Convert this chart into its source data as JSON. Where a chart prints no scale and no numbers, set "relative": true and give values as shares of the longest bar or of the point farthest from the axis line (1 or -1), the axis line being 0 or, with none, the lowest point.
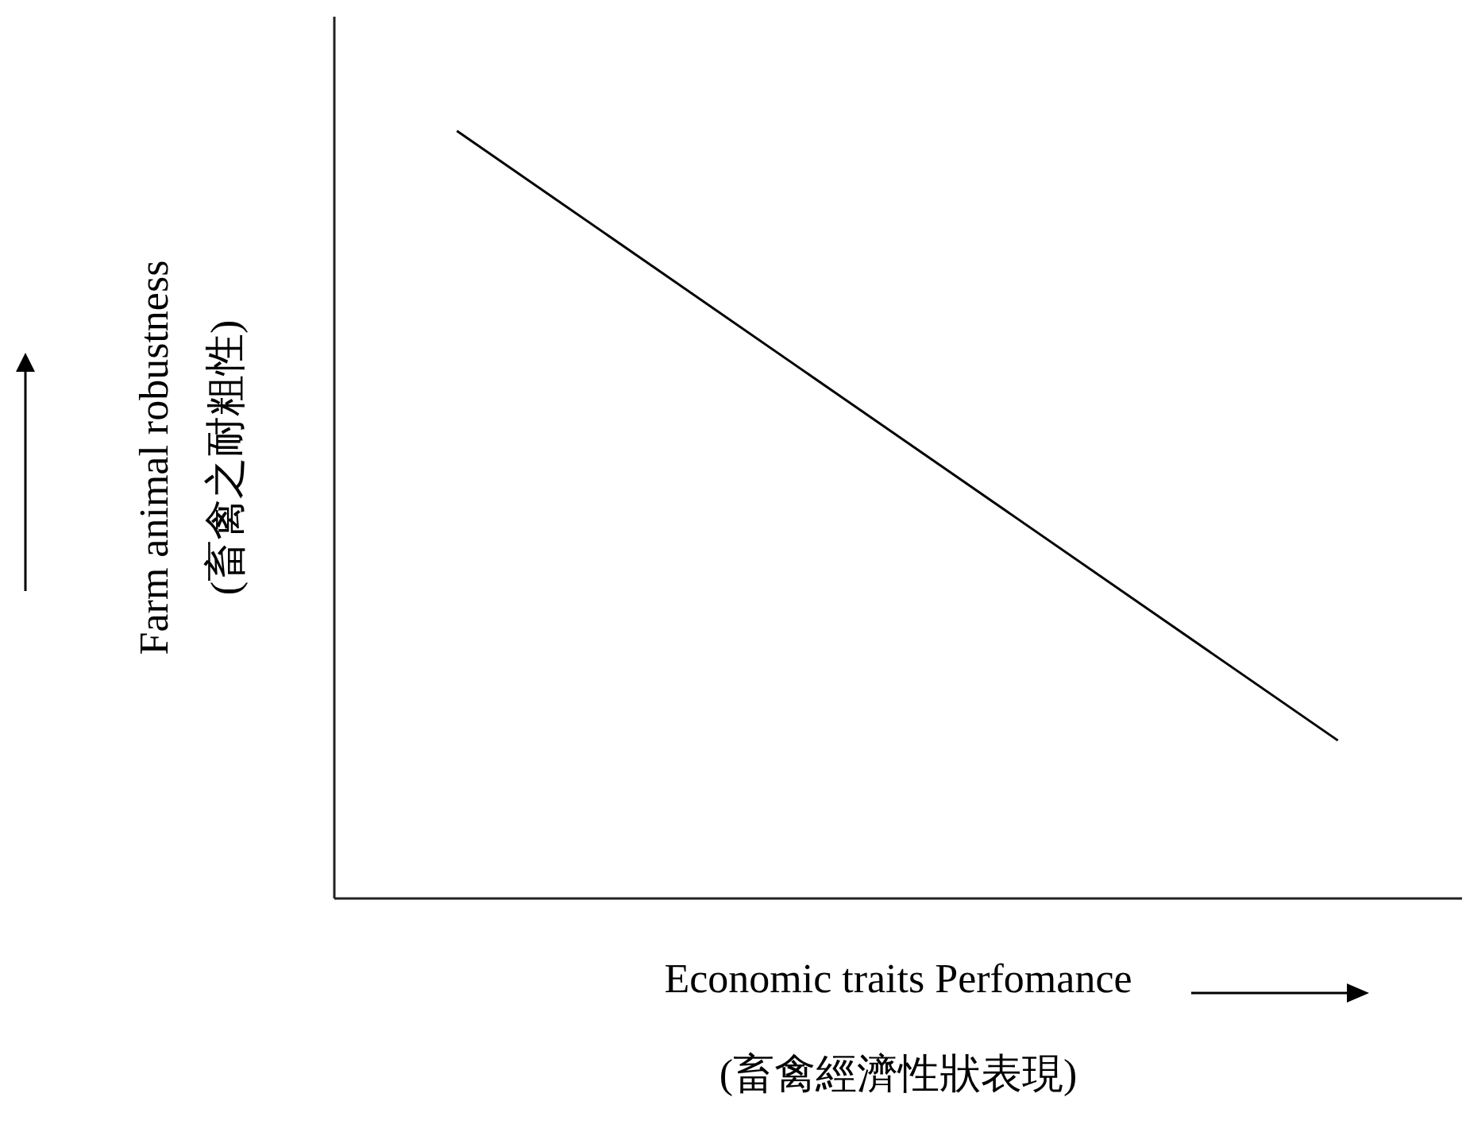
{
  "chart_data": {
    "type": "line",
    "relative": true,
    "tick_labels": false,
    "xlabel": "Economic traits Perfomance\n(畜禽經濟性狀表現)",
    "ylabel": "Farm animal robustness\n(畜禽之耐粗性)",
    "categories": [
      null,
      null
    ],
    "series": [
      {
        "color": "#000000",
        "values": [
          1,
          0.205
        ]
      }
    ]
  }
}
